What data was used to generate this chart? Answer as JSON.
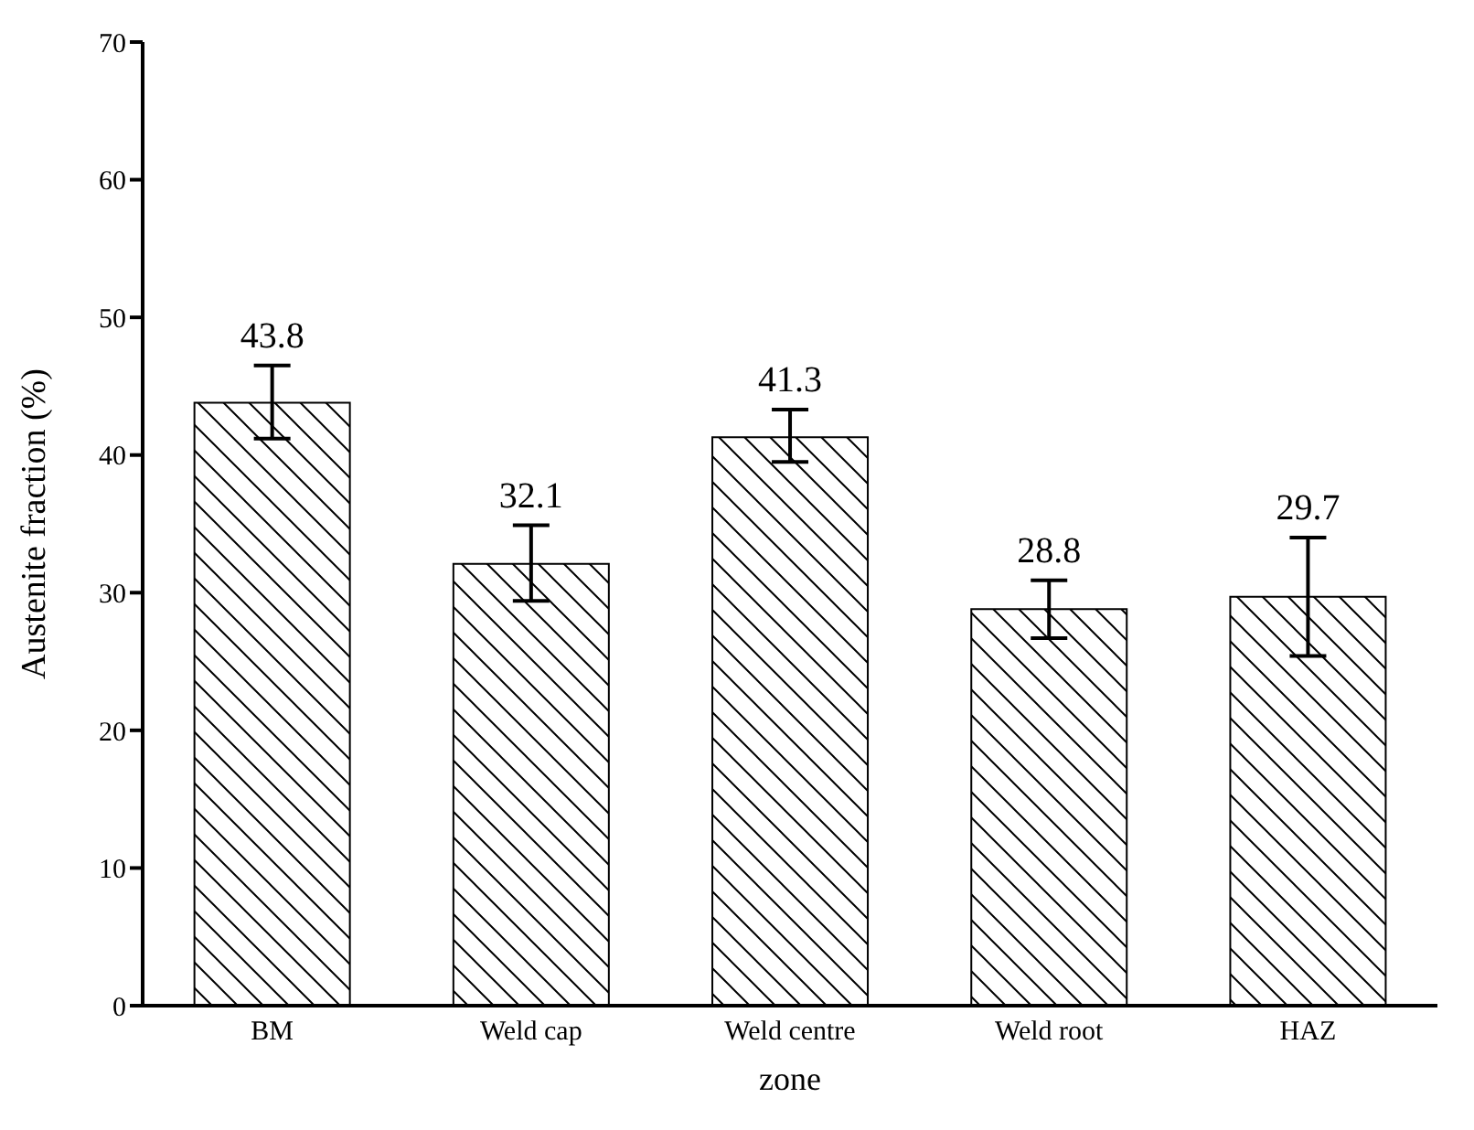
{
  "chart_data": {
    "type": "bar",
    "xlabel": "zone",
    "ylabel": "Austenite fraction (%)",
    "categories": [
      "BM",
      "Weld cap",
      "Weld centre",
      "Weld root",
      "HAZ"
    ],
    "values": [
      43.8,
      32.1,
      41.3,
      28.8,
      29.7
    ],
    "errors": [
      [
        41.2,
        46.5
      ],
      [
        29.4,
        34.9
      ],
      [
        39.5,
        43.3
      ],
      [
        26.7,
        30.9
      ],
      [
        25.4,
        34.0
      ]
    ],
    "color": "#000000",
    "data_labels": true,
    "ylim": [
      0,
      70
    ],
    "yticks": [
      0,
      10,
      20,
      30,
      40,
      50,
      60,
      70
    ]
  }
}
